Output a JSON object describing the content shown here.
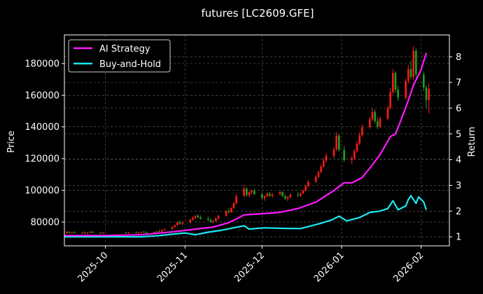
{
  "chart_data": {
    "type": "candlestick+line",
    "title": "futures [LC2609.GFE]",
    "ylabel": "Price",
    "y2label": "Return",
    "x_ticks": [
      "2025-10",
      "2025-11",
      "2025-12",
      "2026-01",
      "2026-02"
    ],
    "y_ticks": [
      80000,
      100000,
      120000,
      140000,
      160000,
      180000
    ],
    "y2_ticks": [
      1,
      2,
      3,
      4,
      5,
      6,
      7,
      8
    ],
    "xlim": [
      "2025-09-15",
      "2026-02-12"
    ],
    "ylim": [
      65000,
      198000
    ],
    "y2lim": [
      0.65,
      8.85
    ],
    "grid": true,
    "legend_position": "top-left",
    "colors": {
      "background": "#000000",
      "candle_up": "#ff1a1a",
      "candle_down": "#1fa01f",
      "ai_strategy": "#ff1aff",
      "buy_and_hold": "#1ae8f0"
    },
    "candles": [
      [
        "2025-09-16",
        73000,
        74500,
        72500,
        73800
      ],
      [
        "2025-09-17",
        73800,
        74200,
        72800,
        73100
      ],
      [
        "2025-09-18",
        73100,
        74000,
        72600,
        73500
      ],
      [
        "2025-09-19",
        73500,
        74300,
        72900,
        73000
      ],
      [
        "2025-09-22",
        73000,
        73800,
        72400,
        73400
      ],
      [
        "2025-09-23",
        73400,
        74100,
        72800,
        72900
      ],
      [
        "2025-09-24",
        72900,
        73600,
        72300,
        73300
      ],
      [
        "2025-09-25",
        73300,
        74400,
        72900,
        73800
      ],
      [
        "2025-09-26",
        73800,
        74500,
        73000,
        73200
      ],
      [
        "2025-09-29",
        73200,
        73900,
        72600,
        73000
      ],
      [
        "2025-09-30",
        73000,
        73700,
        72400,
        73300
      ],
      [
        "2025-10-09",
        73300,
        74000,
        72800,
        73100
      ],
      [
        "2025-10-10",
        73100,
        73800,
        72600,
        73500
      ],
      [
        "2025-10-13",
        73500,
        74200,
        72900,
        73000
      ],
      [
        "2025-10-14",
        73000,
        73600,
        72400,
        73200
      ],
      [
        "2025-10-15",
        73200,
        74100,
        72800,
        73700
      ],
      [
        "2025-10-16",
        73700,
        74400,
        73200,
        73400
      ],
      [
        "2025-10-17",
        73400,
        74000,
        72700,
        73100
      ],
      [
        "2025-10-20",
        73100,
        73900,
        72700,
        73800
      ],
      [
        "2025-10-21",
        73800,
        74600,
        73300,
        74200
      ],
      [
        "2025-10-22",
        74200,
        75000,
        73700,
        74000
      ],
      [
        "2025-10-23",
        74000,
        75200,
        73600,
        75000
      ],
      [
        "2025-10-24",
        75000,
        76000,
        74500,
        75600
      ],
      [
        "2025-10-27",
        75600,
        77200,
        75200,
        76900
      ],
      [
        "2025-10-28",
        76900,
        78500,
        76300,
        78000
      ],
      [
        "2025-10-29",
        78000,
        80200,
        77500,
        79800
      ],
      [
        "2025-10-30",
        79800,
        81000,
        78300,
        78900
      ],
      [
        "2025-10-31",
        78900,
        80300,
        78000,
        79700
      ],
      [
        "2025-11-03",
        79700,
        82000,
        79200,
        81500
      ],
      [
        "2025-11-04",
        81500,
        83500,
        80800,
        82700
      ],
      [
        "2025-11-05",
        82700,
        84500,
        81800,
        83900
      ],
      [
        "2025-11-06",
        83900,
        85000,
        82500,
        83000
      ],
      [
        "2025-11-07",
        83000,
        84200,
        81600,
        82000
      ],
      [
        "2025-11-10",
        82000,
        83600,
        80900,
        81200
      ],
      [
        "2025-11-11",
        81200,
        82400,
        79500,
        80100
      ],
      [
        "2025-11-12",
        80100,
        81500,
        79000,
        80600
      ],
      [
        "2025-11-13",
        80600,
        82800,
        80100,
        82200
      ],
      [
        "2025-11-14",
        82200,
        84500,
        81500,
        84000
      ],
      [
        "2025-11-17",
        84000,
        87500,
        83500,
        86900
      ],
      [
        "2025-11-18",
        86900,
        88800,
        85400,
        86200
      ],
      [
        "2025-11-19",
        86200,
        89300,
        85800,
        88900
      ],
      [
        "2025-11-20",
        88900,
        92500,
        88300,
        91800
      ],
      [
        "2025-11-21",
        91800,
        97500,
        91000,
        96500
      ],
      [
        "2025-11-24",
        96500,
        103500,
        95800,
        101000
      ],
      [
        "2025-11-25",
        101000,
        102000,
        96000,
        97000
      ],
      [
        "2025-11-26",
        97000,
        99500,
        95500,
        98800
      ],
      [
        "2025-11-27",
        98800,
        100500,
        97500,
        99800
      ],
      [
        "2025-11-28",
        99800,
        101000,
        97000,
        97600
      ],
      [
        "2025-12-01",
        97600,
        98500,
        94200,
        95100
      ],
      [
        "2025-12-02",
        95100,
        97000,
        93400,
        96300
      ],
      [
        "2025-12-03",
        96300,
        98700,
        95500,
        97900
      ],
      [
        "2025-12-04",
        97900,
        99000,
        96000,
        96500
      ],
      [
        "2025-12-05",
        96500,
        98200,
        95300,
        97500
      ],
      [
        "2025-12-08",
        97500,
        99600,
        96800,
        98900
      ],
      [
        "2025-12-09",
        98900,
        99500,
        95800,
        96400
      ],
      [
        "2025-12-10",
        96400,
        97500,
        94000,
        94800
      ],
      [
        "2025-12-11",
        94800,
        96500,
        93200,
        95800
      ],
      [
        "2025-12-12",
        95800,
        98000,
        95000,
        97200
      ],
      [
        "2025-12-15",
        97200,
        99000,
        96000,
        96600
      ],
      [
        "2025-12-16",
        96600,
        98700,
        95800,
        98100
      ],
      [
        "2025-12-17",
        98100,
        100500,
        97600,
        99900
      ],
      [
        "2025-12-18",
        99900,
        103500,
        99300,
        102700
      ],
      [
        "2025-12-19",
        102700,
        106500,
        101800,
        105500
      ],
      [
        "2025-12-22",
        105500,
        109500,
        104600,
        108500
      ],
      [
        "2025-12-23",
        108500,
        112500,
        107800,
        111500
      ],
      [
        "2025-12-24",
        111500,
        116500,
        110700,
        115000
      ],
      [
        "2025-12-25",
        115000,
        120500,
        114200,
        118800
      ],
      [
        "2025-12-26",
        118800,
        123500,
        117500,
        121800
      ],
      [
        "2025-12-29",
        121800,
        127500,
        120500,
        125800
      ],
      [
        "2025-12-30",
        125800,
        136500,
        124700,
        134500
      ],
      [
        "2025-12-31",
        134500,
        135500,
        124500,
        125500
      ],
      [
        "2026-01-02",
        125500,
        128000,
        118000,
        119000
      ],
      [
        "2026-01-05",
        119000,
        121500,
        116500,
        120200
      ],
      [
        "2026-01-06",
        120200,
        126000,
        119200,
        124800
      ],
      [
        "2026-01-07",
        124800,
        131000,
        123700,
        129500
      ],
      [
        "2026-01-08",
        129500,
        136500,
        128500,
        134800
      ],
      [
        "2026-01-09",
        134800,
        141500,
        133700,
        139800
      ],
      [
        "2026-01-12",
        139800,
        146500,
        138700,
        144800
      ],
      [
        "2026-01-13",
        144800,
        152000,
        143500,
        149500
      ],
      [
        "2026-01-14",
        149500,
        151000,
        142000,
        143500
      ],
      [
        "2026-01-15",
        143500,
        146000,
        138500,
        140200
      ],
      [
        "2026-01-16",
        140200,
        146500,
        139000,
        145200
      ],
      [
        "2026-01-19",
        145200,
        153500,
        144200,
        152000
      ],
      [
        "2026-01-20",
        152000,
        164500,
        151000,
        162000
      ],
      [
        "2026-01-21",
        162000,
        176500,
        160500,
        174000
      ],
      [
        "2026-01-22",
        174000,
        175000,
        161500,
        163500
      ],
      [
        "2026-01-23",
        163500,
        166000,
        156500,
        158500
      ],
      [
        "2026-01-26",
        158500,
        170500,
        157000,
        169000
      ],
      [
        "2026-01-27",
        169000,
        179000,
        167500,
        176500
      ],
      [
        "2026-01-28",
        176500,
        182000,
        170000,
        171500
      ],
      [
        "2026-01-29",
        171500,
        191000,
        169500,
        188000
      ],
      [
        "2026-01-30",
        188000,
        189500,
        171000,
        173000
      ],
      [
        "2026-02-02",
        173000,
        175000,
        162500,
        164800
      ],
      [
        "2026-02-03",
        164800,
        166500,
        152000,
        157000
      ],
      [
        "2026-02-04",
        157000,
        167500,
        148500,
        164000
      ]
    ],
    "series": [
      {
        "name": "AI Strategy",
        "points": [
          [
            "2025-09-15",
            1.05
          ],
          [
            "2025-10-01",
            1.05
          ],
          [
            "2025-10-15",
            1.08
          ],
          [
            "2025-10-28",
            1.2
          ],
          [
            "2025-11-05",
            1.3
          ],
          [
            "2025-11-12",
            1.38
          ],
          [
            "2025-11-18",
            1.55
          ],
          [
            "2025-11-24",
            1.85
          ],
          [
            "2025-12-01",
            1.9
          ],
          [
            "2025-12-08",
            1.95
          ],
          [
            "2025-12-15",
            2.1
          ],
          [
            "2025-12-22",
            2.35
          ],
          [
            "2025-12-29",
            2.8
          ],
          [
            "2026-01-02",
            3.1
          ],
          [
            "2026-01-05",
            3.1
          ],
          [
            "2026-01-09",
            3.3
          ],
          [
            "2026-01-13",
            3.8
          ],
          [
            "2026-01-16",
            4.2
          ],
          [
            "2026-01-20",
            4.9
          ],
          [
            "2026-01-22",
            5.0
          ],
          [
            "2026-01-24",
            5.5
          ],
          [
            "2026-01-27",
            6.3
          ],
          [
            "2026-01-29",
            6.9
          ],
          [
            "2026-02-01",
            7.5
          ],
          [
            "2026-02-03",
            8.15
          ]
        ]
      },
      {
        "name": "Buy-and-Hold",
        "points": [
          [
            "2025-09-15",
            1.0
          ],
          [
            "2025-09-30",
            1.0
          ],
          [
            "2025-10-15",
            1.0
          ],
          [
            "2025-10-22",
            1.05
          ],
          [
            "2025-10-27",
            1.1
          ],
          [
            "2025-11-01",
            1.15
          ],
          [
            "2025-11-05",
            1.08
          ],
          [
            "2025-11-10",
            1.18
          ],
          [
            "2025-11-15",
            1.25
          ],
          [
            "2025-11-20",
            1.35
          ],
          [
            "2025-11-24",
            1.43
          ],
          [
            "2025-11-26",
            1.3
          ],
          [
            "2025-12-02",
            1.35
          ],
          [
            "2025-12-09",
            1.33
          ],
          [
            "2025-12-16",
            1.32
          ],
          [
            "2025-12-23",
            1.5
          ],
          [
            "2025-12-28",
            1.65
          ],
          [
            "2025-12-31",
            1.8
          ],
          [
            "2026-01-03",
            1.62
          ],
          [
            "2026-01-08",
            1.75
          ],
          [
            "2026-01-12",
            1.95
          ],
          [
            "2026-01-16",
            2.0
          ],
          [
            "2026-01-19",
            2.1
          ],
          [
            "2026-01-21",
            2.4
          ],
          [
            "2026-01-23",
            2.05
          ],
          [
            "2026-01-26",
            2.2
          ],
          [
            "2026-01-27",
            2.45
          ],
          [
            "2026-01-28",
            2.6
          ],
          [
            "2026-01-30",
            2.3
          ],
          [
            "2026-01-31",
            2.55
          ],
          [
            "2026-02-02",
            2.35
          ],
          [
            "2026-02-03",
            2.05
          ]
        ]
      }
    ]
  }
}
